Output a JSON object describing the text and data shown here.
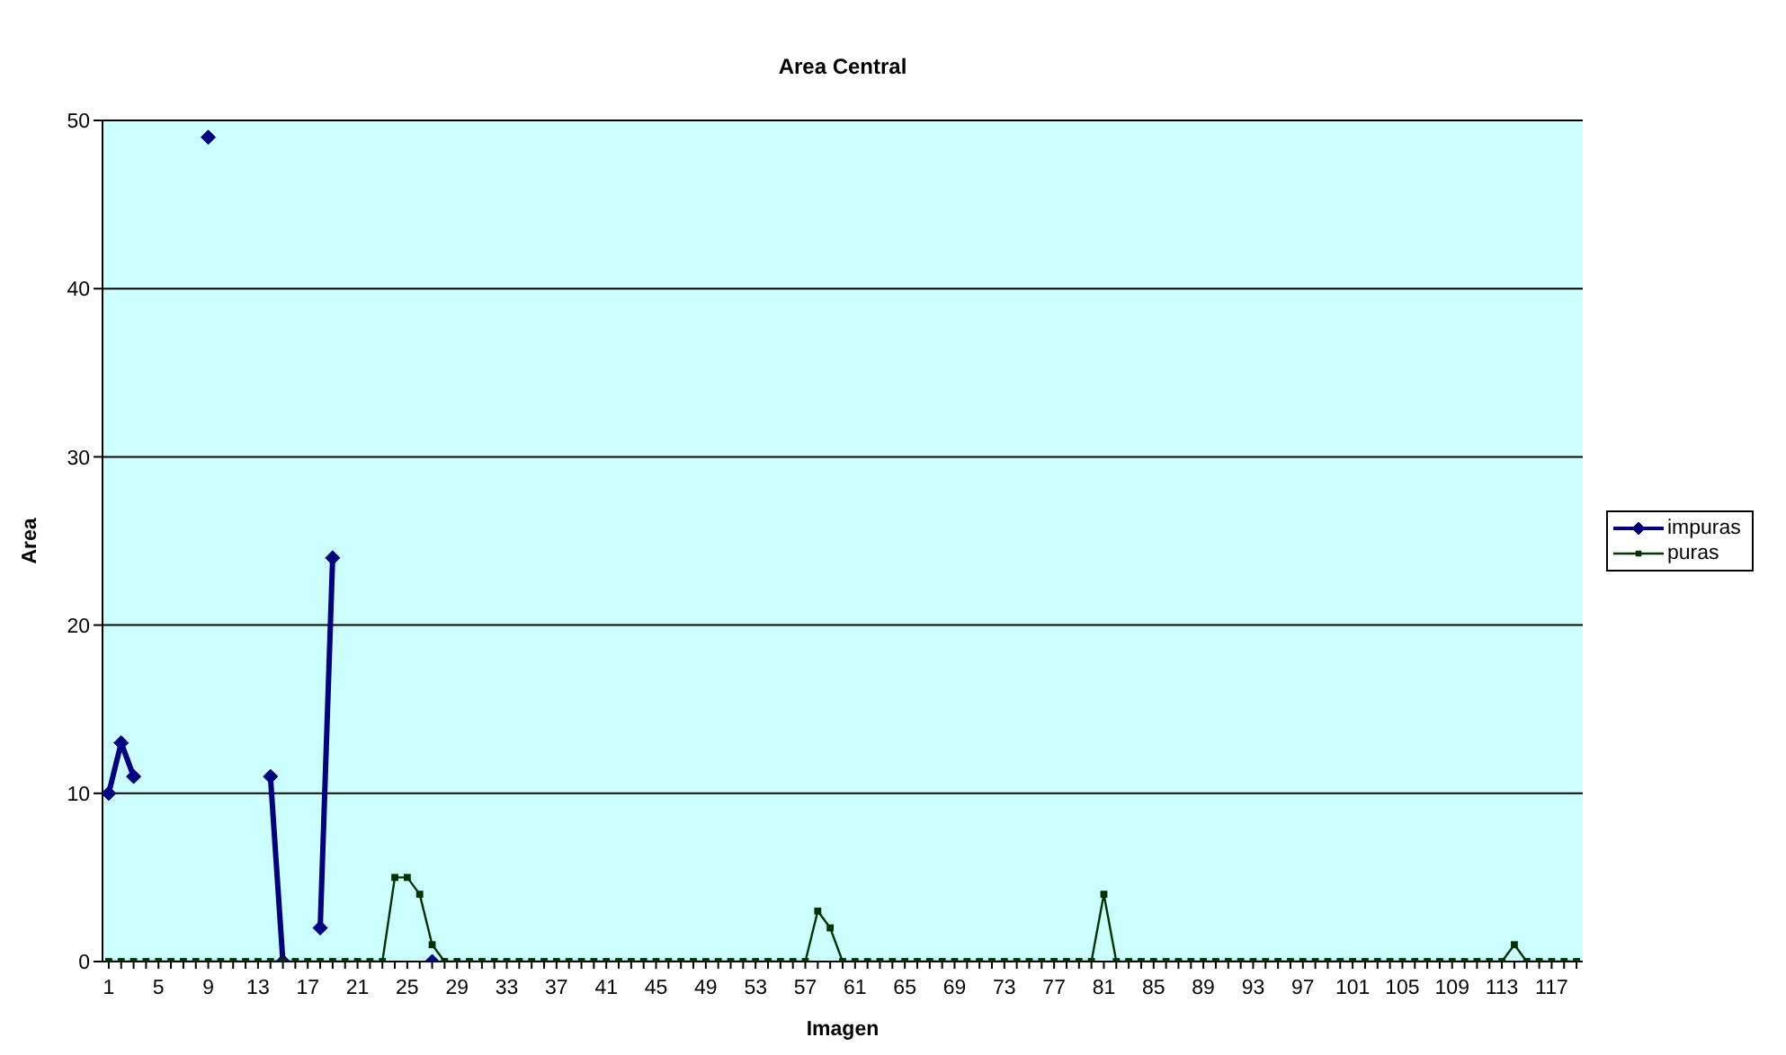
{
  "chart_data": {
    "type": "line",
    "title": "Area Central",
    "xlabel": "Imagen",
    "ylabel": "Area",
    "categories": [
      "1",
      null,
      null,
      null,
      "5",
      null,
      null,
      null,
      "9",
      null,
      null,
      null,
      "13",
      null,
      null,
      null,
      "17",
      null,
      null,
      null,
      "21",
      null,
      null,
      null,
      "25",
      null,
      null,
      null,
      "29",
      null,
      null,
      null,
      "33",
      null,
      null,
      null,
      "37",
      null,
      null,
      null,
      "41",
      null,
      null,
      null,
      "45",
      null,
      null,
      null,
      "49",
      null,
      null,
      null,
      "53",
      null,
      null,
      null,
      "57",
      null,
      null,
      null,
      "61",
      null,
      null,
      null,
      "65",
      null,
      null,
      null,
      "69",
      null,
      null,
      null,
      "73",
      null,
      null,
      null,
      "77",
      null,
      null,
      null,
      "81",
      null,
      null,
      null,
      "85",
      null,
      null,
      null,
      "89",
      null,
      null,
      null,
      "93",
      null,
      null,
      null,
      "97",
      null,
      null,
      null,
      "101",
      null,
      null,
      null,
      "105",
      null,
      null,
      null,
      "109",
      null,
      null,
      null,
      "113",
      null,
      null,
      null,
      "117",
      null,
      null
    ],
    "series": [
      {
        "name": "impuras",
        "color": "#000080",
        "marker": "diamond",
        "values": [
          10,
          13,
          11,
          null,
          null,
          null,
          null,
          null,
          49,
          null,
          null,
          null,
          null,
          11,
          0,
          null,
          null,
          2,
          24,
          null,
          null,
          null,
          null,
          null,
          null,
          null,
          0,
          null,
          null,
          null,
          null,
          null,
          null,
          null,
          null,
          null,
          null,
          null,
          null,
          null,
          null,
          null,
          null,
          null,
          null,
          null,
          null,
          null,
          null,
          null,
          null,
          null,
          null,
          null,
          null,
          null,
          null,
          null,
          null,
          null,
          null,
          null,
          null,
          null,
          null,
          null,
          null,
          null,
          null,
          null,
          null,
          null,
          null,
          null,
          null,
          null,
          null,
          null,
          null,
          null,
          null,
          null,
          null,
          null,
          null,
          null,
          null,
          null,
          null,
          null,
          null,
          null,
          null,
          null,
          null,
          null,
          null,
          null,
          null,
          null,
          null,
          null,
          null,
          null,
          null,
          null,
          null,
          null,
          null,
          null,
          null,
          null,
          null,
          null,
          null,
          null,
          null,
          null,
          null
        ]
      },
      {
        "name": "puras",
        "color": "#003300",
        "marker": "square",
        "values": [
          0,
          0,
          0,
          0,
          0,
          0,
          0,
          0,
          0,
          0,
          0,
          0,
          0,
          0,
          0,
          0,
          0,
          0,
          0,
          0,
          0,
          0,
          0,
          5,
          5,
          4,
          1,
          0,
          0,
          0,
          0,
          0,
          0,
          0,
          0,
          0,
          0,
          0,
          0,
          0,
          0,
          0,
          0,
          0,
          0,
          0,
          0,
          0,
          0,
          0,
          0,
          0,
          0,
          0,
          0,
          0,
          0,
          3,
          2,
          0,
          0,
          0,
          0,
          0,
          0,
          0,
          0,
          0,
          0,
          0,
          0,
          0,
          0,
          0,
          0,
          0,
          0,
          0,
          0,
          0,
          4,
          0,
          0,
          0,
          0,
          0,
          0,
          0,
          0,
          0,
          0,
          0,
          0,
          0,
          0,
          0,
          0,
          0,
          0,
          0,
          0,
          0,
          0,
          0,
          0,
          0,
          0,
          0,
          0,
          0,
          0,
          0,
          0,
          1,
          0,
          0,
          0,
          0,
          0
        ]
      }
    ],
    "ylim": [
      0,
      50
    ],
    "yticks": [
      0,
      10,
      20,
      30,
      40,
      50
    ],
    "grid": "y",
    "legend": "right"
  }
}
